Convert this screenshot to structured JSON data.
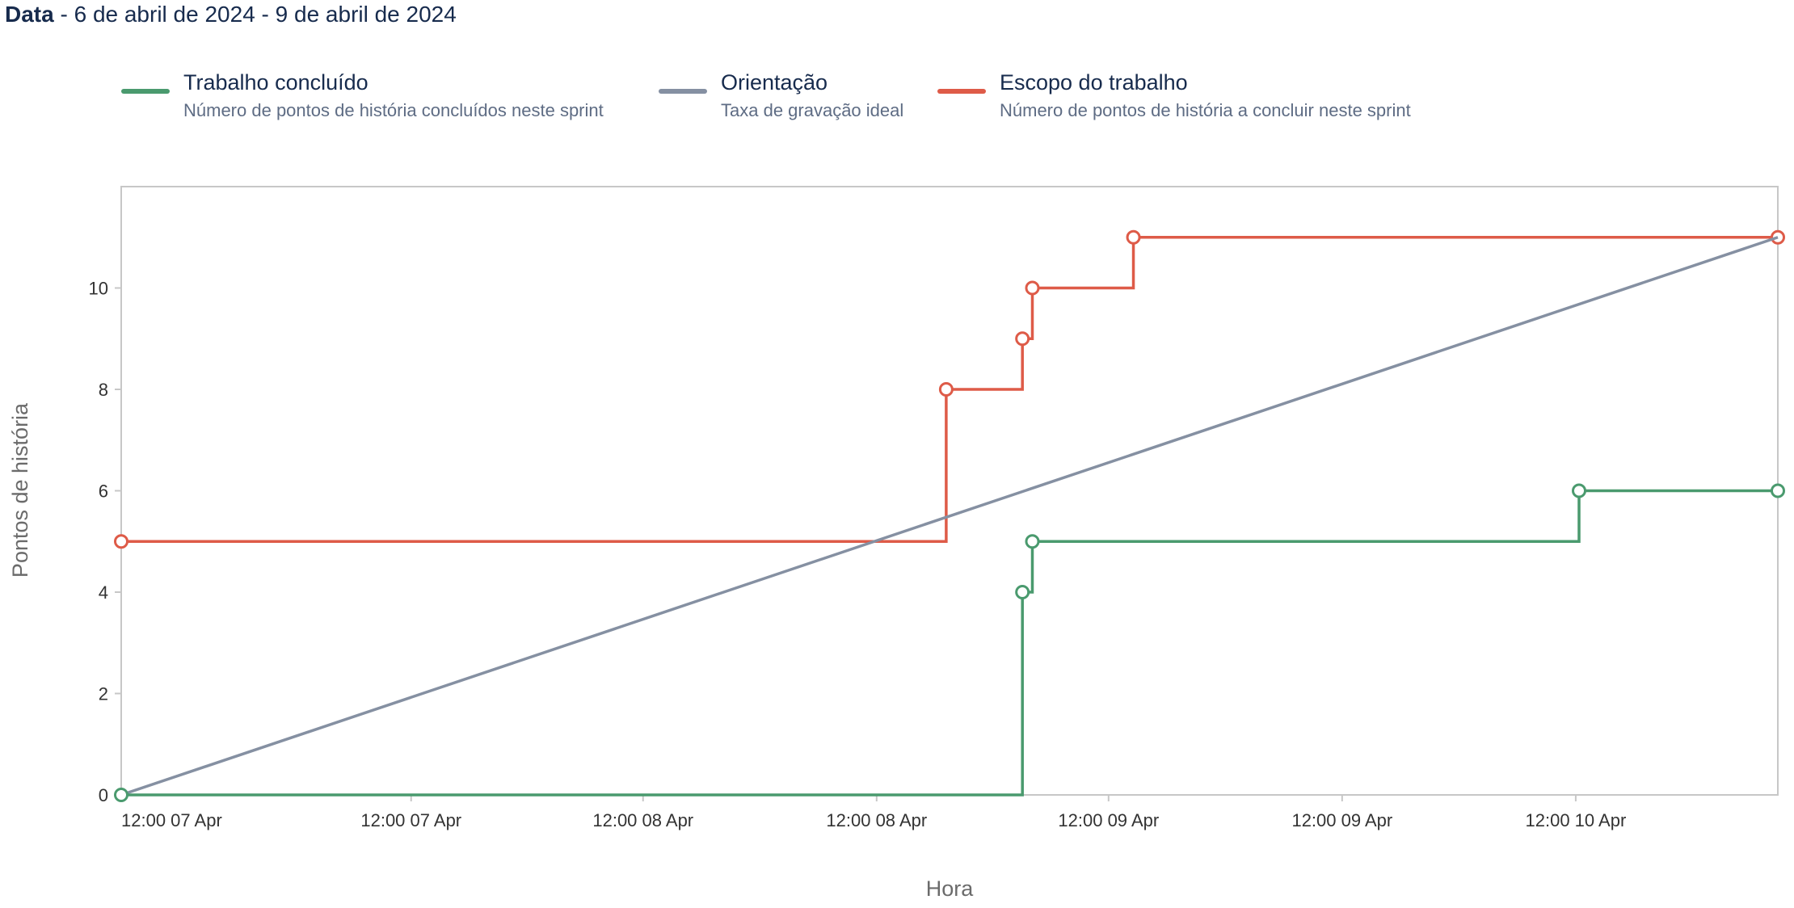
{
  "header": {
    "date_label": "Data",
    "date_range": " - 6 de abril de 2024 - 9 de abril de 2024"
  },
  "legend": [
    {
      "title": "Trabalho concluído",
      "description": "Número de pontos de história concluídos neste sprint",
      "color": "#4a9a6e"
    },
    {
      "title": "Orientação",
      "description": "Taxa de gravação ideal",
      "color": "#8590a2"
    },
    {
      "title": "Escopo do trabalho",
      "description": "Número de pontos de história a concluir neste sprint",
      "color": "#de5b48"
    }
  ],
  "chart_data": {
    "type": "line",
    "xlabel": "Hora",
    "ylabel": "Pontos de história",
    "ylim": [
      0,
      12
    ],
    "yticks": [
      0,
      2,
      4,
      6,
      8,
      10
    ],
    "xlim": [
      0,
      100
    ],
    "xticks": [
      {
        "x": 0,
        "label": "12:00 07 Apr"
      },
      {
        "x": 17.5,
        "label": "12:00 07 Apr"
      },
      {
        "x": 31.5,
        "label": "12:00 08 Apr"
      },
      {
        "x": 45.6,
        "label": "12:00 08 Apr"
      },
      {
        "x": 59.6,
        "label": "12:00 09 Apr"
      },
      {
        "x": 73.7,
        "label": "12:00 09 Apr"
      },
      {
        "x": 87.8,
        "label": "12:00 10 Apr"
      }
    ],
    "grid": false,
    "series": [
      {
        "name": "Escopo do trabalho",
        "color": "#de5b48",
        "step": true,
        "points": [
          [
            0,
            5
          ],
          [
            49.8,
            8
          ],
          [
            54.4,
            9
          ],
          [
            55.0,
            10
          ],
          [
            61.1,
            11
          ],
          [
            100,
            11
          ]
        ],
        "markers": [
          [
            0,
            5
          ],
          [
            49.8,
            8
          ],
          [
            54.4,
            9
          ],
          [
            55.0,
            10
          ],
          [
            61.1,
            11
          ],
          [
            100,
            11
          ]
        ]
      },
      {
        "name": "Orientação",
        "color": "#8590a2",
        "step": false,
        "points": [
          [
            0,
            0
          ],
          [
            100,
            11
          ]
        ],
        "markers": []
      },
      {
        "name": "Trabalho concluído",
        "color": "#4a9a6e",
        "step": true,
        "points": [
          [
            0,
            0
          ],
          [
            54.4,
            4
          ],
          [
            55.0,
            5
          ],
          [
            88.0,
            6
          ],
          [
            100,
            6
          ]
        ],
        "markers": [
          [
            0,
            0
          ],
          [
            54.4,
            4
          ],
          [
            55.0,
            5
          ],
          [
            88.0,
            6
          ],
          [
            100,
            6
          ]
        ]
      }
    ]
  }
}
